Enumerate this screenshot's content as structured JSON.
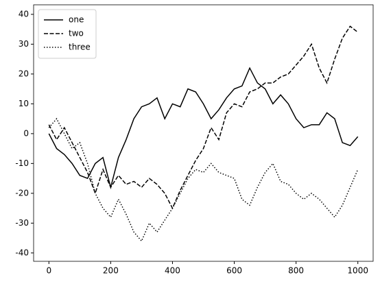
{
  "chart_data": {
    "type": "line",
    "x": [
      0,
      25,
      50,
      75,
      100,
      125,
      150,
      175,
      200,
      225,
      250,
      275,
      300,
      325,
      350,
      375,
      400,
      425,
      450,
      475,
      500,
      525,
      550,
      575,
      600,
      625,
      650,
      675,
      700,
      725,
      750,
      775,
      800,
      825,
      850,
      875,
      900,
      925,
      950,
      975,
      1000
    ],
    "series": [
      {
        "name": "one",
        "color": "#000000",
        "linestyle": "solid",
        "values": [
          0,
          -5,
          -7,
          -10,
          -14,
          -15,
          -10,
          -8,
          -18,
          -8,
          -2,
          5,
          9,
          10,
          12,
          5,
          10,
          9,
          15,
          14,
          10,
          5,
          8,
          12,
          15,
          16,
          22,
          17,
          15,
          10,
          13,
          10,
          5,
          2,
          3,
          3,
          7,
          5,
          -3,
          -4,
          -1
        ]
      },
      {
        "name": "two",
        "color": "#000000",
        "linestyle": "dashed",
        "values": [
          3,
          -2,
          2,
          -3,
          -8,
          -13,
          -20,
          -12,
          -18,
          -14,
          -17,
          -16,
          -18,
          -15,
          -17,
          -20,
          -25,
          -19,
          -14,
          -9,
          -5,
          2,
          -2,
          7,
          10,
          9,
          14,
          15,
          17,
          17,
          19,
          20,
          23,
          26,
          30,
          22,
          17,
          25,
          32,
          36,
          34
        ]
      },
      {
        "name": "three",
        "color": "#000000",
        "linestyle": "dotted",
        "values": [
          2,
          5,
          0,
          -5,
          -3,
          -10,
          -20,
          -25,
          -28,
          -22,
          -27,
          -33,
          -36,
          -30,
          -33,
          -29,
          -25,
          -20,
          -15,
          -12,
          -13,
          -10,
          -13,
          -14,
          -15,
          -22,
          -24,
          -18,
          -13,
          -10,
          -16,
          -17,
          -20,
          -22,
          -20,
          -22,
          -25,
          -28,
          -24,
          -18,
          -12
        ]
      }
    ],
    "xlim": [
      -49.5,
      1049.5
    ],
    "ylim": [
      -42.8,
      43.2
    ],
    "xticks": [
      0,
      200,
      400,
      600,
      800,
      1000
    ],
    "yticks": [
      -40,
      -30,
      -20,
      -10,
      0,
      10,
      20,
      30,
      40
    ],
    "legend": "upper left"
  }
}
